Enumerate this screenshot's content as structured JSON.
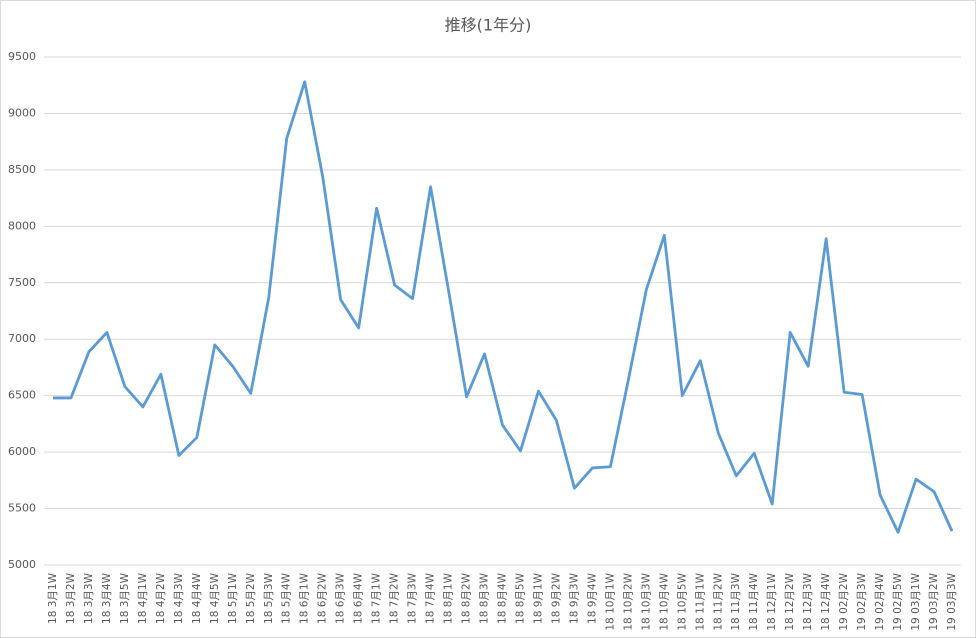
{
  "chart_data": {
    "type": "line",
    "title": "推移(1年分)",
    "categories": [
      "18 3月1W",
      "18 3月2W",
      "18 3月3W",
      "18 3月4W",
      "18 3月5W",
      "18 4月1W",
      "18 4月2W",
      "18 4月3W",
      "18 4月4W",
      "18 4月5W",
      "18 5月1W",
      "18 5月2W",
      "18 5月3W",
      "18 5月4W",
      "18 6月1W",
      "18 6月2W",
      "18 6月3W",
      "18 6月4W",
      "18 7月1W",
      "18 7月2W",
      "18 7月3W",
      "18 7月4W",
      "18 8月1W",
      "18 8月2W",
      "18 8月3W",
      "18 8月4W",
      "18 8月5W",
      "18 9月1W",
      "18 9月2W",
      "18 9月3W",
      "18 9月4W",
      "18 10月1W",
      "18 10月2W",
      "18 10月3W",
      "18 10月4W",
      "18 10月5W",
      "18 11月1W",
      "18 11月2W",
      "18 11月3W",
      "18 11月4W",
      "18 12月1W",
      "18 12月2W",
      "18 12月3W",
      "18 12月4W",
      "19 02月2W",
      "19 02月3W",
      "19 02月4W",
      "19 02月5W",
      "19 03月1W",
      "19 03月2W",
      "19 03月3W"
    ],
    "series": [
      {
        "color": "#5b9bd5",
        "values": [
          6480,
          6480,
          6890,
          7060,
          6580,
          6400,
          6690,
          5970,
          6130,
          6950,
          6760,
          6520,
          7370,
          8780,
          9280,
          8440,
          7350,
          7100,
          8160,
          7480,
          7360,
          8350,
          7430,
          6490,
          6870,
          6240,
          6010,
          6540,
          6280,
          5680,
          5860,
          5870,
          6640,
          7440,
          7920,
          6500,
          6810,
          6170,
          5790,
          5990,
          5540,
          7060,
          6760,
          7890,
          6530,
          6510,
          5620,
          5290,
          5760,
          5650,
          5300
        ]
      }
    ],
    "ylim": [
      5000,
      9500
    ],
    "yticks": [
      5000,
      5500,
      6000,
      6500,
      7000,
      7500,
      8000,
      8500,
      9000,
      9500
    ],
    "grid": true
  }
}
